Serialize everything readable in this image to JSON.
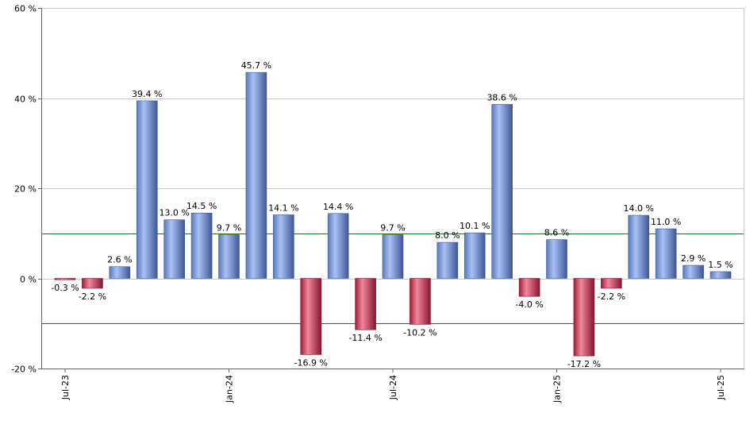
{
  "chart_data": {
    "type": "bar",
    "title": "",
    "xlabel": "",
    "ylabel": "",
    "ylim": [
      -20,
      60
    ],
    "yticks": [
      -20,
      0,
      20,
      40,
      60
    ],
    "ytick_labels": [
      "-20 %",
      "0 %",
      "20 %",
      "40 %",
      "60 %"
    ],
    "grid": true,
    "reference_lines": [
      10,
      -10
    ],
    "reference_line_color": "#1e7a1e",
    "positive_color": "#7f9fe0",
    "negative_color": "#c8304a",
    "x_tick_labels": [
      {
        "index": 0,
        "label": "Jul-23"
      },
      {
        "index": 6,
        "label": "Jan-24"
      },
      {
        "index": 12,
        "label": "Jul-24"
      },
      {
        "index": 18,
        "label": "Jan-25"
      },
      {
        "index": 24,
        "label": "Jul-25"
      }
    ],
    "values": [
      -0.3,
      -2.2,
      2.6,
      39.4,
      13.0,
      14.5,
      9.7,
      45.7,
      14.1,
      -16.9,
      14.4,
      -11.4,
      9.7,
      -10.2,
      8.0,
      10.1,
      38.6,
      -4.0,
      8.6,
      -17.2,
      -2.2,
      14.0,
      11.0,
      2.9,
      1.5
    ],
    "labels": [
      "-0.3 %",
      "-2.2 %",
      "2.6 %",
      "39.4 %",
      "13.0 %",
      "14.5 %",
      "9.7 %",
      "45.7 %",
      "14.1 %",
      "-16.9 %",
      "14.4 %",
      "-11.4 %",
      "9.7 %",
      "-10.2 %",
      "8.0 %",
      "10.1 %",
      "38.6 %",
      "-4.0 %",
      "8.6 %",
      "-17.2 %",
      "-2.2 %",
      "14.0 %",
      "11.0 %",
      "2.9 %",
      "1.5 %"
    ]
  }
}
